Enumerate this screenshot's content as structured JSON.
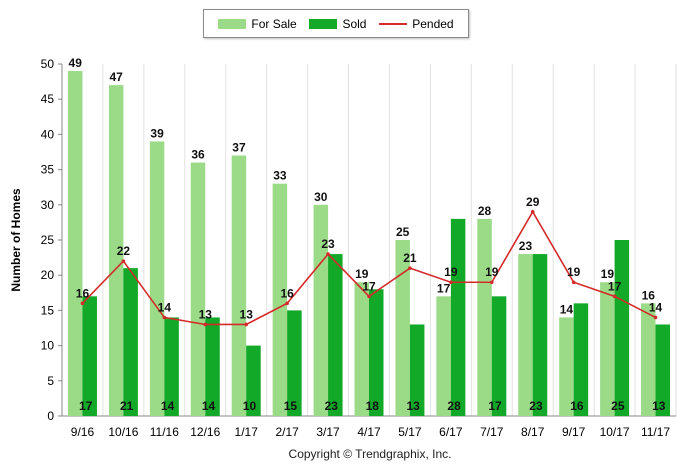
{
  "chart_data": {
    "type": "bar",
    "ylabel": "Number of Homes",
    "ylim": [
      0,
      50
    ],
    "yticks": [
      0,
      5,
      10,
      15,
      20,
      25,
      30,
      35,
      40,
      45,
      50
    ],
    "categories": [
      "9/16",
      "10/16",
      "11/16",
      "12/16",
      "1/17",
      "2/17",
      "3/17",
      "4/17",
      "5/17",
      "6/17",
      "7/17",
      "8/17",
      "9/17",
      "10/17",
      "11/17"
    ],
    "series": [
      {
        "name": "For Sale",
        "kind": "bar",
        "color": "#9bdb88",
        "values": [
          49,
          47,
          39,
          36,
          37,
          33,
          30,
          19,
          25,
          17,
          28,
          23,
          14,
          19,
          16
        ]
      },
      {
        "name": "Sold",
        "kind": "bar",
        "color": "#12a828",
        "values": [
          17,
          21,
          14,
          14,
          10,
          15,
          23,
          18,
          13,
          28,
          17,
          23,
          16,
          25,
          13
        ]
      },
      {
        "name": "Pended",
        "kind": "line",
        "color": "#d42a2a",
        "values": [
          16,
          22,
          14,
          13,
          13,
          16,
          23,
          17,
          21,
          19,
          19,
          29,
          19,
          17,
          14
        ]
      }
    ],
    "grid": "vertical",
    "legend_position": "top-center"
  },
  "footer": {
    "copyright": "Copyright © Trendgraphix, Inc."
  }
}
